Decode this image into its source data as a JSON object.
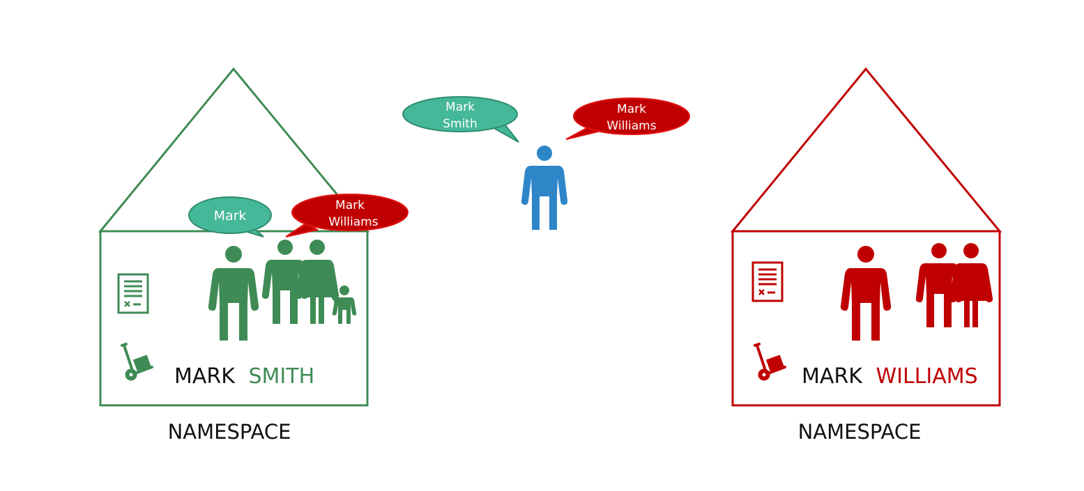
{
  "colors": {
    "green": "#3f8b55",
    "teal": "#45b899",
    "teal_border": "#2f8c6e",
    "red": "#c00000",
    "blue": "#2e86c8"
  },
  "icons": [
    "document-icon",
    "hand-truck-icon",
    "person-icon",
    "couple-icon",
    "family-icon"
  ],
  "houses": {
    "smith": {
      "name_first": "MARK",
      "name_last": "SMITH",
      "caption": "NAMESPACE",
      "bubbles": {
        "first": [
          "Mark"
        ],
        "second": [
          "Mark",
          "Williams"
        ]
      }
    },
    "williams": {
      "name_first": "MARK",
      "name_last": "WILLIAMS",
      "caption": "NAMESPACE"
    }
  },
  "outsider": {
    "bubbles": {
      "left": [
        "Mark",
        "Smith"
      ],
      "right": [
        "Mark",
        "Williams"
      ]
    }
  }
}
